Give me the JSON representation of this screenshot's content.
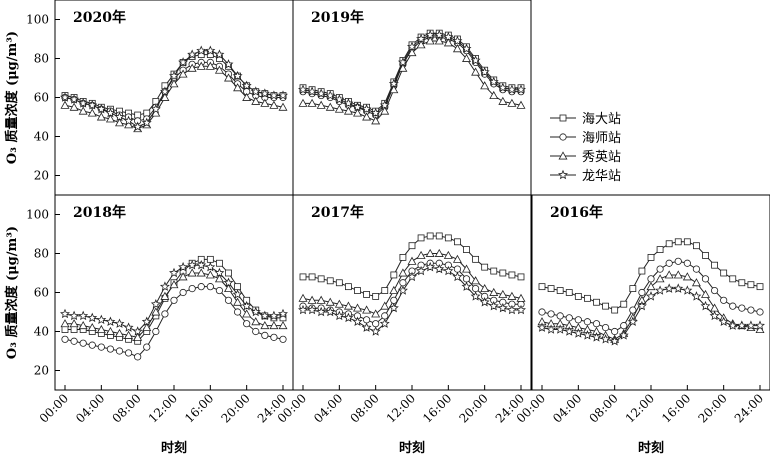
{
  "chart_data": {
    "type": "line",
    "ylabel": "O₃ 质量浓度 (μg/m³)",
    "xlabel": "时刻",
    "x_ticks": [
      "00:00",
      "04:00",
      "08:00",
      "12:00",
      "16:00",
      "20:00",
      "24:00"
    ],
    "x": [
      0,
      1,
      2,
      3,
      4,
      5,
      6,
      7,
      8,
      9,
      10,
      11,
      12,
      13,
      14,
      15,
      16,
      17,
      18,
      19,
      20,
      21,
      22,
      23,
      24
    ],
    "ylim": [
      10,
      110
    ],
    "y_ticks": [
      20,
      40,
      60,
      80,
      100
    ],
    "legend": {
      "placement": "right",
      "entries": [
        {
          "name": "海大站",
          "marker": "square"
        },
        {
          "name": "海师站",
          "marker": "circle"
        },
        {
          "name": "秀英站",
          "marker": "triangle"
        },
        {
          "name": "龙华站",
          "marker": "star"
        }
      ]
    },
    "panels": [
      {
        "title": "2020年",
        "series": [
          {
            "name": "海大站",
            "values": [
              61,
              60,
              58,
              57,
              55,
              54,
              53,
              52,
              51,
              52,
              58,
              66,
              72,
              78,
              81,
              82,
              82,
              80,
              76,
              71,
              66,
              63,
              62,
              61,
              61
            ]
          },
          {
            "name": "海师站",
            "values": [
              60,
              59,
              57,
              56,
              54,
              53,
              51,
              50,
              48,
              49,
              55,
              63,
              70,
              74,
              77,
              78,
              78,
              76,
              72,
              67,
              63,
              61,
              60,
              60,
              60
            ]
          },
          {
            "name": "秀英站",
            "values": [
              56,
              55,
              53,
              52,
              50,
              49,
              47,
              46,
              44,
              46,
              52,
              60,
              67,
              72,
              75,
              76,
              76,
              74,
              70,
              65,
              60,
              58,
              57,
              56,
              55
            ]
          },
          {
            "name": "龙华站",
            "values": [
              60,
              59,
              57,
              56,
              54,
              52,
              50,
              48,
              45,
              47,
              54,
              63,
              71,
              78,
              82,
              84,
              84,
              82,
              77,
              71,
              66,
              63,
              62,
              61,
              61
            ]
          }
        ]
      },
      {
        "title": "2019年",
        "series": [
          {
            "name": "海大站",
            "values": [
              65,
              64,
              63,
              62,
              60,
              58,
              56,
              55,
              53,
              57,
              68,
              79,
              87,
              91,
              93,
              93,
              92,
              90,
              86,
              80,
              74,
              69,
              66,
              65,
              65
            ]
          },
          {
            "name": "海师站",
            "values": [
              63,
              62,
              61,
              60,
              58,
              56,
              55,
              53,
              51,
              55,
              66,
              77,
              85,
              89,
              91,
              91,
              90,
              88,
              84,
              78,
              72,
              67,
              64,
              63,
              63
            ]
          },
          {
            "name": "秀英站",
            "values": [
              57,
              57,
              56,
              55,
              54,
              53,
              52,
              50,
              48,
              53,
              64,
              75,
              83,
              87,
              89,
              89,
              88,
              85,
              80,
              73,
              66,
              61,
              58,
              57,
              56
            ]
          },
          {
            "name": "龙华站",
            "values": [
              64,
              63,
              62,
              61,
              59,
              57,
              55,
              54,
              52,
              56,
              67,
              78,
              86,
              90,
              92,
              92,
              91,
              89,
              85,
              79,
              73,
              68,
              65,
              64,
              64
            ]
          }
        ]
      },
      {
        "title": "2018年",
        "series": [
          {
            "name": "海大站",
            "values": [
              41,
              41,
              41,
              40,
              39,
              38,
              37,
              36,
              35,
              40,
              48,
              57,
              65,
              71,
              75,
              77,
              77,
              75,
              70,
              63,
              56,
              51,
              48,
              47,
              47
            ]
          },
          {
            "name": "海师站",
            "values": [
              36,
              35,
              34,
              33,
              32,
              31,
              30,
              29,
              27,
              32,
              40,
              49,
              56,
              60,
              62,
              63,
              63,
              61,
              56,
              50,
              44,
              40,
              38,
              37,
              36
            ]
          },
          {
            "name": "秀英站",
            "values": [
              44,
              44,
              43,
              42,
              41,
              40,
              39,
              38,
              37,
              42,
              50,
              58,
              64,
              68,
              70,
              70,
              69,
              67,
              62,
              55,
              49,
              45,
              43,
              43,
              43
            ]
          },
          {
            "name": "龙华站",
            "values": [
              49,
              48,
              48,
              47,
              46,
              45,
              44,
              42,
              40,
              45,
              54,
              63,
              70,
              73,
              74,
              74,
              73,
              70,
              65,
              59,
              53,
              50,
              48,
              48,
              49
            ]
          }
        ]
      },
      {
        "title": "2017年",
        "series": [
          {
            "name": "海大站",
            "values": [
              68,
              68,
              67,
              66,
              65,
              63,
              61,
              59,
              58,
              61,
              69,
              78,
              84,
              88,
              89,
              89,
              88,
              86,
              82,
              77,
              73,
              71,
              70,
              69,
              68
            ]
          },
          {
            "name": "海师站",
            "values": [
              53,
              52,
              52,
              51,
              50,
              49,
              48,
              46,
              44,
              48,
              56,
              65,
              71,
              74,
              75,
              75,
              74,
              72,
              67,
              62,
              58,
              56,
              55,
              54,
              54
            ]
          },
          {
            "name": "秀英站",
            "values": [
              57,
              56,
              56,
              55,
              54,
              53,
              52,
              51,
              49,
              53,
              61,
              70,
              76,
              79,
              80,
              80,
              79,
              77,
              72,
              66,
              62,
              60,
              59,
              58,
              57
            ]
          },
          {
            "name": "龙华站",
            "values": [
              51,
              51,
              50,
              50,
              48,
              47,
              45,
              42,
              40,
              44,
              52,
              61,
              68,
              71,
              73,
              72,
              71,
              68,
              63,
              58,
              55,
              53,
              52,
              51,
              51
            ]
          }
        ]
      },
      {
        "title": "2016年",
        "series": [
          {
            "name": "海大站",
            "values": [
              63,
              62,
              61,
              60,
              58,
              57,
              55,
              53,
              51,
              54,
              62,
              71,
              78,
              82,
              85,
              86,
              86,
              84,
              79,
              74,
              70,
              67,
              65,
              64,
              63
            ]
          },
          {
            "name": "海师站",
            "values": [
              50,
              49,
              48,
              47,
              46,
              45,
              44,
              42,
              40,
              43,
              51,
              60,
              67,
              72,
              75,
              76,
              75,
              72,
              67,
              61,
              56,
              53,
              52,
              51,
              50
            ]
          },
          {
            "name": "秀英站",
            "values": [
              45,
              44,
              44,
              43,
              42,
              41,
              40,
              38,
              36,
              39,
              47,
              56,
              63,
              67,
              69,
              69,
              68,
              65,
              59,
              52,
              47,
              44,
              43,
              42,
              41
            ]
          },
          {
            "name": "龙华站",
            "values": [
              42,
              41,
              41,
              40,
              39,
              38,
              37,
              36,
              35,
              38,
              45,
              53,
              58,
              61,
              62,
              62,
              61,
              58,
              53,
              48,
              45,
              43,
              43,
              43,
              43
            ]
          }
        ]
      }
    ]
  }
}
